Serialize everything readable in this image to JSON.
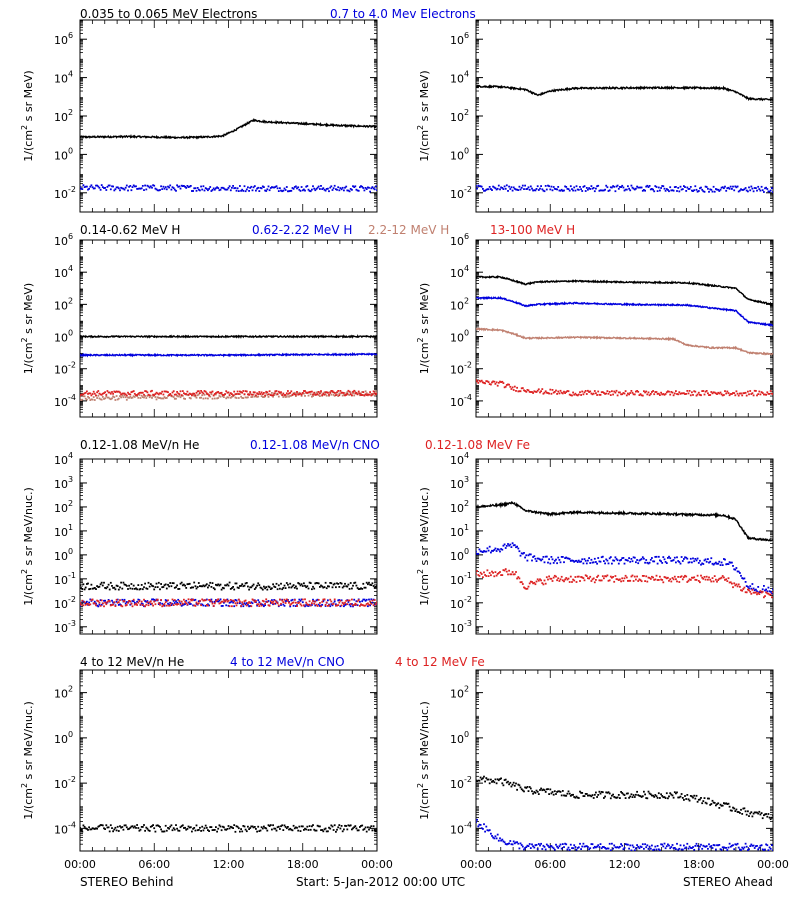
{
  "footer": {
    "left": "STEREO Behind",
    "center": "Start:  5-Jan-2012 00:00 UTC",
    "right": "STEREO Ahead"
  },
  "colors": {
    "black": "#000000",
    "blue": "#0000dd",
    "tan": "#c08070",
    "red": "#dd2222"
  },
  "chart_data": [
    {
      "type": "scatter",
      "row": 0,
      "panel": "STEREO Behind",
      "ylabel": "1/(cm^2 s sr MeV)",
      "ylog": true,
      "ylim": [
        0.001,
        10000000
      ],
      "yticks": [
        0.01,
        1,
        100,
        10000,
        1000000
      ],
      "ytick_labels": [
        [
          "10",
          "-2"
        ],
        [
          "10",
          "0"
        ],
        [
          "10",
          "2"
        ],
        [
          "10",
          "4"
        ],
        [
          "10",
          "6"
        ]
      ],
      "xticks": [
        "00:00",
        "06:00",
        "12:00",
        "18:00",
        "00:00"
      ],
      "series": [
        {
          "name": "0.035 to 0.065 MeV Electrons",
          "color": "#000000",
          "style": "line",
          "x": [
            0,
            4,
            8,
            10,
            11.5,
            12.5,
            13.5,
            14,
            15,
            18,
            21,
            24
          ],
          "y": [
            8,
            8.5,
            7.5,
            8,
            9,
            18,
            40,
            60,
            50,
            40,
            32,
            28
          ]
        },
        {
          "name": "0.7 to 4.0 Mev Electrons",
          "color": "#0000dd",
          "style": "dots",
          "x": [
            0,
            6,
            12,
            18,
            24
          ],
          "y": [
            0.018,
            0.018,
            0.017,
            0.017,
            0.016
          ]
        }
      ]
    },
    {
      "type": "scatter",
      "row": 0,
      "panel": "STEREO Ahead",
      "ylabel": "1/(cm^2 s sr MeV)",
      "ylog": true,
      "ylim": [
        0.001,
        10000000
      ],
      "yticks": [
        0.01,
        1,
        100,
        10000,
        1000000
      ],
      "ytick_labels": [
        [
          "10",
          "-2"
        ],
        [
          "10",
          "0"
        ],
        [
          "10",
          "2"
        ],
        [
          "10",
          "4"
        ],
        [
          "10",
          "6"
        ]
      ],
      "xticks": [
        "00:00",
        "06:00",
        "12:00",
        "18:00",
        "00:00"
      ],
      "series": [
        {
          "name": "0.035 to 0.065 MeV Electrons",
          "color": "#000000",
          "style": "line",
          "x": [
            0,
            2,
            4,
            5,
            6,
            8,
            12,
            16,
            20,
            21,
            22,
            24
          ],
          "y": [
            3500,
            3300,
            2400,
            1200,
            2000,
            2800,
            2900,
            3000,
            2800,
            1800,
            800,
            700
          ]
        },
        {
          "name": "0.7 to 4.0 Mev Electrons",
          "color": "#0000dd",
          "style": "dots",
          "x": [
            0,
            6,
            12,
            18,
            24
          ],
          "y": [
            0.018,
            0.017,
            0.017,
            0.016,
            0.015
          ]
        }
      ]
    },
    {
      "type": "scatter",
      "row": 1,
      "panel": "STEREO Behind",
      "ylabel": "1/(cm^2 s sr MeV)",
      "ylog": true,
      "ylim": [
        1e-05,
        1000000
      ],
      "yticks": [
        0.0001,
        0.01,
        1,
        100,
        10000,
        1000000
      ],
      "ytick_labels": [
        [
          "10",
          "-4"
        ],
        [
          "10",
          "-2"
        ],
        [
          "10",
          "0"
        ],
        [
          "10",
          "2"
        ],
        [
          "10",
          "4"
        ],
        [
          "10",
          "6"
        ]
      ],
      "xticks": [
        "00:00",
        "06:00",
        "12:00",
        "18:00",
        "00:00"
      ],
      "series": [
        {
          "name": "0.14-0.62 MeV H",
          "color": "#000000",
          "style": "line",
          "x": [
            0,
            12,
            24
          ],
          "y": [
            1,
            1,
            1
          ]
        },
        {
          "name": "0.62-2.22 MeV H",
          "color": "#0000dd",
          "style": "line",
          "x": [
            0,
            12,
            24
          ],
          "y": [
            0.07,
            0.07,
            0.08
          ]
        },
        {
          "name": "2.2-12 MeV H",
          "color": "#c08070",
          "style": "dots",
          "x": [
            0,
            12,
            24
          ],
          "y": [
            0.00015,
            0.0002,
            0.0003
          ]
        },
        {
          "name": "13-100 MeV H",
          "color": "#dd2222",
          "style": "dots",
          "x": [
            0,
            12,
            24
          ],
          "y": [
            0.0003,
            0.0003,
            0.0003
          ]
        }
      ]
    },
    {
      "type": "scatter",
      "row": 1,
      "panel": "STEREO Ahead",
      "ylabel": "1/(cm^2 s sr MeV)",
      "ylog": true,
      "ylim": [
        1e-05,
        1000000
      ],
      "yticks": [
        0.0001,
        0.01,
        1,
        100,
        10000,
        1000000
      ],
      "ytick_labels": [
        [
          "10",
          "-4"
        ],
        [
          "10",
          "-2"
        ],
        [
          "10",
          "0"
        ],
        [
          "10",
          "2"
        ],
        [
          "10",
          "4"
        ],
        [
          "10",
          "6"
        ]
      ],
      "xticks": [
        "00:00",
        "06:00",
        "12:00",
        "18:00",
        "00:00"
      ],
      "series": [
        {
          "name": "0.14-0.62 MeV H",
          "color": "#000000",
          "style": "line",
          "x": [
            0,
            2,
            3,
            4,
            5,
            8,
            12,
            17,
            19,
            21,
            22,
            24
          ],
          "y": [
            5000,
            5000,
            3000,
            1800,
            2500,
            2800,
            2400,
            2200,
            1500,
            1000,
            200,
            100
          ]
        },
        {
          "name": "0.62-2.22 MeV H",
          "color": "#0000dd",
          "style": "line",
          "x": [
            0,
            2,
            3,
            4,
            5,
            8,
            12,
            17,
            19,
            21,
            22,
            24
          ],
          "y": [
            250,
            250,
            150,
            80,
            100,
            120,
            100,
            90,
            60,
            40,
            8,
            5
          ]
        },
        {
          "name": "2.2-12 MeV H",
          "color": "#c08070",
          "style": "line",
          "x": [
            0,
            2,
            3,
            4,
            5,
            8,
            12,
            16,
            17,
            19,
            21,
            22,
            24
          ],
          "y": [
            3,
            2.5,
            1.5,
            0.8,
            0.8,
            0.9,
            0.8,
            0.7,
            0.3,
            0.2,
            0.2,
            0.1,
            0.08
          ]
        },
        {
          "name": "13-100 MeV H",
          "color": "#dd2222",
          "style": "dots",
          "x": [
            0,
            2,
            3,
            5,
            8,
            12,
            18,
            24
          ],
          "y": [
            0.0015,
            0.0012,
            0.0006,
            0.0004,
            0.0003,
            0.0003,
            0.0003,
            0.0003
          ]
        }
      ]
    },
    {
      "type": "scatter",
      "row": 2,
      "panel": "STEREO Behind",
      "ylabel": "1/(cm^2 s sr MeV/nuc.)",
      "ylog": true,
      "ylim": [
        0.0005,
        10000
      ],
      "yticks": [
        0.001,
        0.01,
        0.1,
        1,
        10,
        100,
        1000,
        10000
      ],
      "ytick_labels": [
        [
          "10",
          "-3"
        ],
        [
          "10",
          "-2"
        ],
        [
          "10",
          "-1"
        ],
        [
          "10",
          "0"
        ],
        [
          "10",
          "1"
        ],
        [
          "10",
          "2"
        ],
        [
          "10",
          "3"
        ],
        [
          "10",
          "4"
        ]
      ],
      "xticks": [
        "00:00",
        "06:00",
        "12:00",
        "18:00",
        "00:00"
      ],
      "series": [
        {
          "name": "0.12-1.08 MeV/n He",
          "color": "#000000",
          "style": "dots",
          "x": [
            0,
            6,
            12,
            18,
            24
          ],
          "y": [
            0.05,
            0.05,
            0.05,
            0.05,
            0.05
          ]
        },
        {
          "name": "0.12-1.08 MeV/n CNO",
          "color": "#0000dd",
          "style": "dots",
          "x": [
            0,
            6,
            12,
            18,
            24
          ],
          "y": [
            0.01,
            0.01,
            0.01,
            0.01,
            0.01
          ]
        },
        {
          "name": "0.12-1.08 MeV Fe",
          "color": "#dd2222",
          "style": "dots",
          "x": [
            0,
            6,
            12,
            18,
            24
          ],
          "y": [
            0.01,
            0.01,
            0.01,
            0.01,
            0.01
          ]
        }
      ]
    },
    {
      "type": "scatter",
      "row": 2,
      "panel": "STEREO Ahead",
      "ylabel": "1/(cm^2 s sr MeV/nuc.)",
      "ylog": true,
      "ylim": [
        0.0005,
        10000
      ],
      "yticks": [
        0.001,
        0.01,
        0.1,
        1,
        10,
        100,
        1000,
        10000
      ],
      "ytick_labels": [
        [
          "10",
          "-3"
        ],
        [
          "10",
          "-2"
        ],
        [
          "10",
          "-1"
        ],
        [
          "10",
          "0"
        ],
        [
          "10",
          "1"
        ],
        [
          "10",
          "2"
        ],
        [
          "10",
          "3"
        ],
        [
          "10",
          "4"
        ]
      ],
      "xticks": [
        "00:00",
        "06:00",
        "12:00",
        "18:00",
        "00:00"
      ],
      "series": [
        {
          "name": "0.12-1.08 MeV/n He",
          "color": "#000000",
          "style": "line",
          "x": [
            0,
            2,
            3,
            4,
            6,
            8,
            12,
            16,
            20,
            21,
            22,
            24
          ],
          "y": [
            100,
            120,
            150,
            70,
            50,
            60,
            55,
            50,
            45,
            30,
            5,
            4
          ]
        },
        {
          "name": "0.12-1.08 MeV/n CNO",
          "color": "#0000dd",
          "style": "dots",
          "x": [
            0,
            2,
            3,
            4,
            6,
            8,
            12,
            16,
            20,
            21,
            22,
            24
          ],
          "y": [
            1.5,
            1.8,
            2.5,
            0.8,
            0.6,
            0.6,
            0.6,
            0.6,
            0.5,
            0.3,
            0.05,
            0.03
          ]
        },
        {
          "name": "0.12-1.08 MeV Fe",
          "color": "#dd2222",
          "style": "dots",
          "x": [
            0,
            2,
            3,
            4,
            6,
            8,
            12,
            16,
            20,
            22,
            24
          ],
          "y": [
            0.15,
            0.18,
            0.2,
            0.05,
            0.1,
            0.1,
            0.1,
            0.1,
            0.1,
            0.03,
            0.02
          ]
        }
      ]
    },
    {
      "type": "scatter",
      "row": 3,
      "panel": "STEREO Behind",
      "ylabel": "1/(cm^2 s sr MeV/nuc.)",
      "ylog": true,
      "ylim": [
        1e-05,
        1000
      ],
      "yticks": [
        0.0001,
        0.01,
        1,
        100
      ],
      "ytick_labels": [
        [
          "10",
          "-4"
        ],
        [
          "10",
          "-2"
        ],
        [
          "10",
          "0"
        ],
        [
          "10",
          "2"
        ]
      ],
      "xticks": [
        "00:00",
        "06:00",
        "12:00",
        "18:00",
        "00:00"
      ],
      "series": [
        {
          "name": "4 to 12 MeV/n He",
          "color": "#000000",
          "style": "dots",
          "x": [
            0,
            6,
            12,
            18,
            24
          ],
          "y": [
            0.0001,
            0.0001,
            0.0001,
            0.0001,
            0.0001
          ]
        },
        {
          "name": "4 to 12 MeV/n CNO",
          "color": "#0000dd",
          "style": "dots",
          "x": [],
          "y": []
        },
        {
          "name": "4 to 12 MeV Fe",
          "color": "#dd2222",
          "style": "dots",
          "x": [],
          "y": []
        }
      ]
    },
    {
      "type": "scatter",
      "row": 3,
      "panel": "STEREO Ahead",
      "ylabel": "1/(cm^2 s sr MeV/nuc.)",
      "ylog": true,
      "ylim": [
        1e-05,
        1000
      ],
      "yticks": [
        0.0001,
        0.01,
        1,
        100
      ],
      "ytick_labels": [
        [
          "10",
          "-4"
        ],
        [
          "10",
          "-2"
        ],
        [
          "10",
          "0"
        ],
        [
          "10",
          "2"
        ]
      ],
      "xticks": [
        "00:00",
        "06:00",
        "12:00",
        "18:00",
        "00:00"
      ],
      "series": [
        {
          "name": "4 to 12 MeV/n He",
          "color": "#000000",
          "style": "dots",
          "x": [
            0,
            2,
            3,
            4,
            6,
            8,
            12,
            16,
            18,
            20,
            22,
            24
          ],
          "y": [
            0.015,
            0.012,
            0.008,
            0.005,
            0.004,
            0.003,
            0.003,
            0.003,
            0.002,
            0.001,
            0.0005,
            0.0003
          ]
        },
        {
          "name": "4 to 12 MeV/n CNO",
          "color": "#0000dd",
          "style": "dots",
          "x": [
            0,
            2,
            4,
            8,
            12,
            18,
            24
          ],
          "y": [
            0.0002,
            3e-05,
            1.5e-05,
            1.5e-05,
            1.5e-05,
            1.5e-05,
            1.5e-05
          ]
        },
        {
          "name": "4 to 12 MeV Fe",
          "color": "#dd2222",
          "style": "dots",
          "x": [],
          "y": []
        }
      ]
    }
  ],
  "row_titles": [
    [
      {
        "text": "0.035 to 0.065 MeV Electrons",
        "color": "#000000"
      },
      {
        "text": "0.7 to 4.0 Mev Electrons",
        "color": "#0000dd"
      }
    ],
    [
      {
        "text": "0.14-0.62 MeV H",
        "color": "#000000"
      },
      {
        "text": "0.62-2.22 MeV H",
        "color": "#0000dd"
      },
      {
        "text": "2.2-12 MeV H",
        "color": "#c08070"
      },
      {
        "text": "13-100 MeV H",
        "color": "#dd2222"
      }
    ],
    [
      {
        "text": "0.12-1.08 MeV/n He",
        "color": "#000000"
      },
      {
        "text": "0.12-1.08 MeV/n CNO",
        "color": "#0000dd"
      },
      {
        "text": "0.12-1.08 MeV Fe",
        "color": "#dd2222"
      }
    ],
    [
      {
        "text": "4 to 12 MeV/n He",
        "color": "#000000"
      },
      {
        "text": "4 to 12 MeV/n CNO",
        "color": "#0000dd"
      },
      {
        "text": "4 to 12 MeV Fe",
        "color": "#dd2222"
      }
    ]
  ]
}
